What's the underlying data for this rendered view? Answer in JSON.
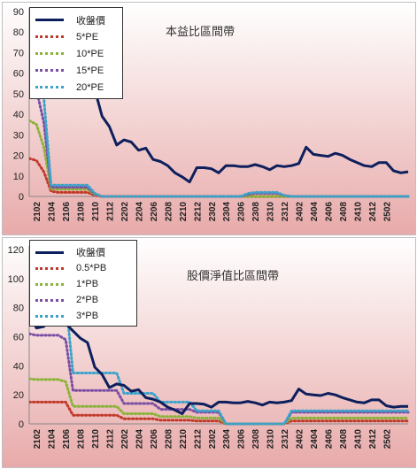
{
  "colors": {
    "price": "#0d1f5c",
    "band1": "#c0392b",
    "band2": "#8bb33a",
    "band3": "#7b4fa3",
    "band4": "#3ca3c9",
    "bg_top": "#ffffff",
    "bg_bottom": "#e8aaaa"
  },
  "chart_data": [
    {
      "type": "line",
      "title": "本益比區間帶",
      "xlabel": "",
      "ylabel": "",
      "ylim": [
        0,
        90
      ],
      "yticks": [
        0,
        10,
        20,
        30,
        40,
        50,
        60,
        70,
        80,
        90
      ],
      "grid": false,
      "legend_position": "top-left",
      "x_labels": [
        "2102",
        "2104",
        "2106",
        "2108",
        "2110",
        "2112",
        "2202",
        "2204",
        "2206",
        "2208",
        "2210",
        "2212",
        "2302",
        "2304",
        "2306",
        "2308",
        "2310",
        "2312",
        "2402",
        "2404",
        "2406",
        "2408",
        "2410",
        "2412",
        "2502"
      ],
      "series": [
        {
          "name": "收盤價",
          "style": "solid",
          "color_key": "price",
          "values": [
            90,
            86,
            82,
            80,
            76,
            73,
            72,
            70,
            57,
            52,
            39,
            34,
            25,
            27.5,
            26.5,
            22.5,
            23.5,
            18,
            17,
            15,
            11.5,
            9.5,
            7,
            14,
            14,
            13.5,
            11.5,
            15,
            15,
            14.5,
            14.5,
            15.5,
            14.5,
            13,
            15,
            14.5,
            15,
            16,
            24,
            20.5,
            20,
            19.5,
            21,
            20,
            18,
            16.5,
            15,
            14.5,
            16.5,
            16.5,
            12.5,
            11.5,
            12
          ]
        },
        {
          "name": "5*PE",
          "style": "dotted",
          "color_key": "band1",
          "values": [
            18.5,
            17.5,
            12,
            2.5,
            2,
            2,
            2,
            2,
            2,
            0.5,
            0,
            0,
            0,
            0,
            0,
            0,
            0,
            0,
            0,
            0,
            0,
            0,
            0,
            0,
            0,
            0,
            0,
            0,
            0,
            0,
            0,
            0,
            0,
            0,
            0,
            0,
            0,
            0,
            0,
            0,
            0,
            0,
            0,
            0,
            0,
            0,
            0,
            0,
            0,
            0,
            0,
            0,
            0
          ]
        },
        {
          "name": "10*PE",
          "style": "dotted",
          "color_key": "band2",
          "values": [
            37,
            35,
            24,
            3.5,
            3.5,
            3.5,
            3.5,
            3.5,
            3.5,
            1,
            0,
            0,
            0,
            0,
            0,
            0,
            0,
            0,
            0,
            0,
            0,
            0,
            0,
            0,
            0,
            0,
            0,
            0,
            0,
            0,
            0,
            0,
            0,
            0,
            0,
            0,
            0,
            0,
            0,
            0,
            0,
            0,
            0,
            0,
            0,
            0,
            0,
            0,
            0,
            0,
            0,
            0,
            0
          ]
        },
        {
          "name": "15*PE",
          "style": "dotted",
          "color_key": "band3",
          "values": [
            56,
            52,
            36,
            4.5,
            4.5,
            4.5,
            4.5,
            4.5,
            4.5,
            1.2,
            0,
            0,
            0,
            0,
            0,
            0,
            0,
            0,
            0,
            0,
            0,
            0,
            0,
            0,
            0,
            0,
            0,
            0,
            0,
            0,
            1,
            1.5,
            1.5,
            1.5,
            1.5,
            0.5,
            0,
            0,
            0,
            0,
            0,
            0,
            0,
            0,
            0,
            0,
            0,
            0,
            0,
            0,
            0,
            0,
            0
          ]
        },
        {
          "name": "20*PE",
          "style": "dotted",
          "color_key": "band4",
          "values": [
            74,
            70,
            48,
            5.5,
            5.5,
            5.5,
            5.5,
            5.5,
            5.5,
            1.5,
            0,
            0,
            0,
            0,
            0,
            0,
            0,
            0,
            0,
            0,
            0,
            0,
            0,
            0,
            0,
            0,
            0,
            0,
            0,
            0,
            1.5,
            2,
            2,
            2,
            2,
            0.5,
            0,
            0,
            0,
            0,
            0,
            0,
            0,
            0,
            0,
            0,
            0,
            0,
            0,
            0,
            0,
            0,
            0
          ]
        }
      ]
    },
    {
      "type": "line",
      "title": "股價淨值比區間帶",
      "xlabel": "",
      "ylabel": "",
      "ylim": [
        0,
        120
      ],
      "yticks": [
        0,
        20,
        40,
        60,
        80,
        100,
        120
      ],
      "grid": false,
      "legend_position": "top-left",
      "x_labels": [
        "2102",
        "2104",
        "2106",
        "2108",
        "2110",
        "2112",
        "2202",
        "2204",
        "2206",
        "2208",
        "2210",
        "2212",
        "2302",
        "2304",
        "2306",
        "2308",
        "2310",
        "2312",
        "2402",
        "2404",
        "2406",
        "2408",
        "2410",
        "2412",
        "2502"
      ],
      "series": [
        {
          "name": "收盤價",
          "style": "solid",
          "color_key": "price",
          "values": [
            75,
            66,
            67,
            72,
            72,
            69,
            64,
            59,
            56,
            39,
            34,
            25,
            27.5,
            26.5,
            22.5,
            23.5,
            18,
            17,
            15,
            11.5,
            9.5,
            7,
            14,
            14,
            13.5,
            11.5,
            15,
            15,
            14.5,
            14.5,
            15.5,
            14.5,
            13,
            15,
            14.5,
            15,
            16,
            24,
            20.5,
            20,
            19.5,
            21,
            20,
            18,
            16.5,
            15,
            14.5,
            16.5,
            16.5,
            12.5,
            11.5,
            12,
            12
          ]
        },
        {
          "name": "0.5*PB",
          "style": "dotted",
          "color_key": "band1",
          "values": [
            15,
            15,
            15,
            15,
            15,
            15,
            6,
            6,
            6,
            6,
            6,
            6,
            6,
            3.5,
            3.5,
            3.5,
            3.5,
            3.5,
            2.5,
            2.5,
            2.5,
            2.5,
            2.5,
            2,
            2,
            2,
            2,
            0,
            0,
            0,
            0,
            0,
            0,
            0,
            0,
            0,
            2,
            2,
            2,
            2,
            2,
            2,
            2,
            2,
            2,
            2,
            2,
            2,
            2,
            2,
            2,
            2,
            2
          ]
        },
        {
          "name": "1*PB",
          "style": "dotted",
          "color_key": "band2",
          "values": [
            31,
            30.5,
            30.5,
            30.5,
            30.5,
            29,
            12,
            12,
            12,
            12,
            12,
            12,
            12,
            7,
            7,
            7,
            7,
            7,
            5,
            5,
            5,
            5,
            5,
            4,
            4,
            4,
            4,
            0,
            0,
            0,
            0,
            0,
            0,
            0,
            0,
            0,
            4,
            4,
            4,
            4,
            4,
            4,
            4,
            4,
            4,
            4,
            4,
            4,
            4,
            4,
            4,
            4,
            4
          ]
        },
        {
          "name": "2*PB",
          "style": "dotted",
          "color_key": "band3",
          "values": [
            62,
            61,
            61,
            61,
            61,
            58,
            23,
            23,
            23,
            23,
            23,
            23,
            23,
            14,
            14,
            14,
            14,
            14,
            10,
            10,
            10,
            10,
            10,
            8,
            8,
            8,
            8,
            0,
            0,
            0,
            0,
            0,
            0,
            0,
            0,
            0,
            8,
            8,
            8,
            8,
            8,
            8,
            8,
            8,
            8,
            8,
            8,
            8,
            8,
            8,
            8,
            8,
            8
          ]
        },
        {
          "name": "3*PB",
          "style": "dotted",
          "color_key": "band4",
          "values": [
            93,
            91.5,
            91.5,
            91.5,
            91.5,
            87,
            35,
            35,
            35,
            35,
            35,
            35,
            35,
            21,
            21,
            21,
            21,
            21,
            15,
            15,
            15,
            15,
            15,
            9,
            9,
            9,
            9,
            0,
            0,
            0,
            0,
            0,
            0,
            0,
            0,
            0,
            9,
            9,
            9,
            9,
            9,
            9,
            9,
            9,
            9,
            9,
            9,
            9,
            9,
            9,
            9,
            9,
            9
          ]
        }
      ]
    }
  ]
}
